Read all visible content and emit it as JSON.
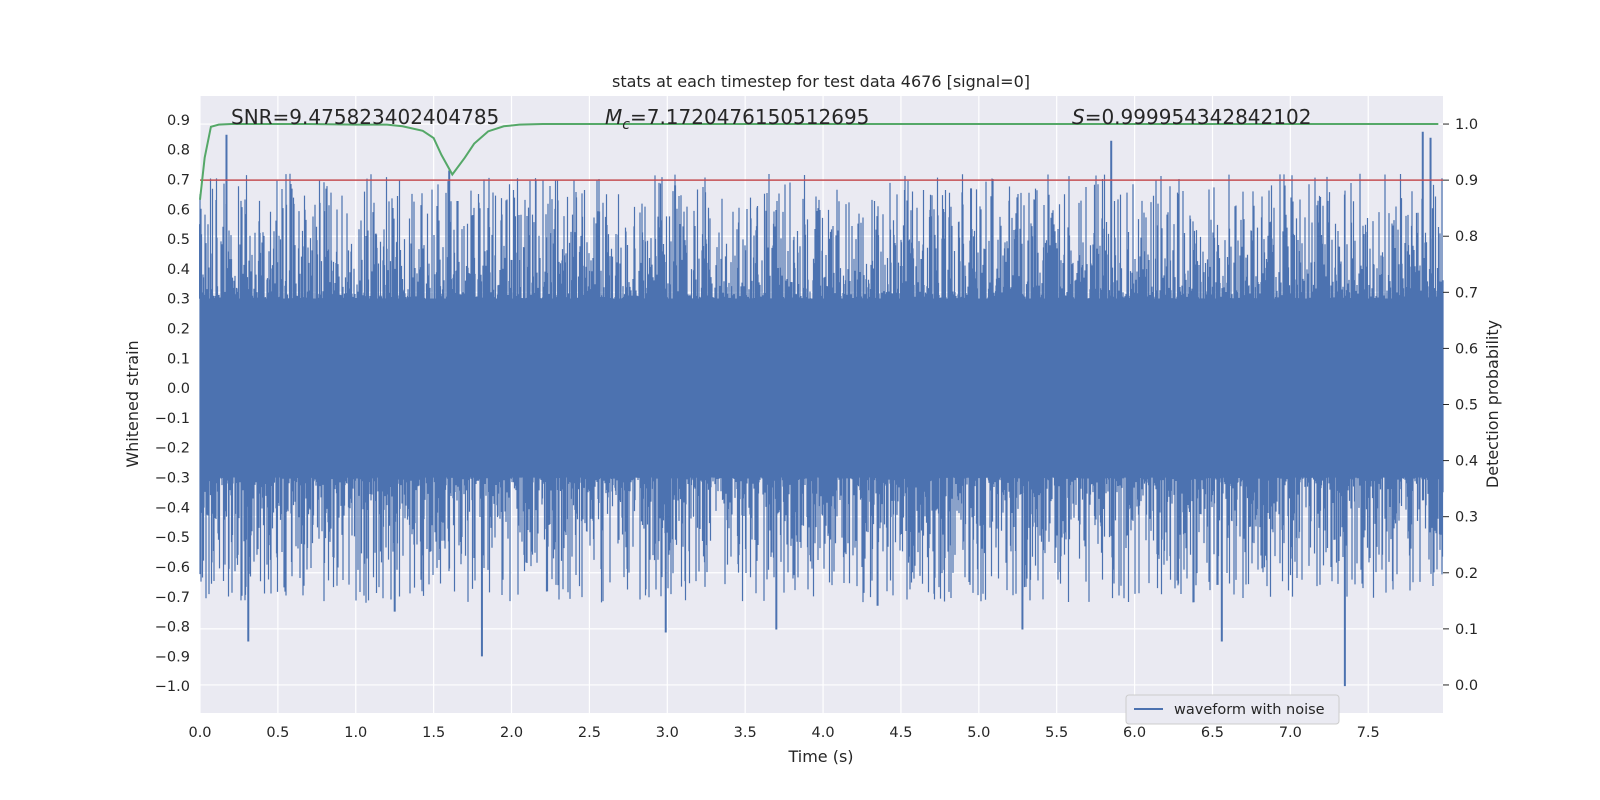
{
  "chart_data": {
    "type": "line",
    "title": "stats at each timestep for test data 4676 [signal=0]",
    "xlabel": "Time (s)",
    "ylabel": "Whitened strain",
    "y2label": "Detection probability",
    "xlim": [
      0.0,
      7.98
    ],
    "ylim": [
      -1.09,
      0.98
    ],
    "y2lim": [
      -0.05,
      1.05
    ],
    "x_ticks": [
      0.0,
      0.5,
      1.0,
      1.5,
      2.0,
      2.5,
      3.0,
      3.5,
      4.0,
      4.5,
      5.0,
      5.5,
      6.0,
      6.5,
      7.0,
      7.5
    ],
    "x_tick_labels": [
      "0.0",
      "0.5",
      "1.0",
      "1.5",
      "2.0",
      "2.5",
      "3.0",
      "3.5",
      "4.0",
      "4.5",
      "5.0",
      "5.5",
      "6.0",
      "6.5",
      "7.0",
      "7.5"
    ],
    "y_ticks": [
      0.9,
      0.8,
      0.7,
      0.6,
      0.5,
      0.4,
      0.3,
      0.2,
      0.1,
      0.0,
      -0.1,
      -0.2,
      -0.3,
      -0.4,
      -0.5,
      -0.6,
      -0.7,
      -0.8,
      -0.9,
      -1.0
    ],
    "y_tick_labels": [
      "0.9",
      "0.8",
      "0.7",
      "0.6",
      "0.5",
      "0.4",
      "0.3",
      "0.2",
      "0.1",
      "0.0",
      "−0.1",
      "−0.2",
      "−0.3",
      "−0.4",
      "−0.5",
      "−0.6",
      "−0.7",
      "−0.8",
      "−0.9",
      "−1.0"
    ],
    "y2_ticks": [
      1.0,
      0.9,
      0.8,
      0.7,
      0.6,
      0.5,
      0.4,
      0.3,
      0.2,
      0.1,
      0.0
    ],
    "y2_tick_labels": [
      "1.0",
      "0.9",
      "0.8",
      "0.7",
      "0.6",
      "0.5",
      "0.4",
      "0.3",
      "0.2",
      "0.1",
      "0.0"
    ],
    "grid": true,
    "legend": {
      "entries": [
        "waveform with noise"
      ],
      "position": "lower-right"
    },
    "annotations": {
      "snr": "SNR=9.475823402404785",
      "mc_symbol": "M",
      "mc_subscript": "c",
      "mc_value": "=7.1720476150512695",
      "s_symbol": "S",
      "s_value": "=0.999954342842102"
    },
    "series": [
      {
        "name": "waveform with noise",
        "axis": "left",
        "color": "#4c72b0",
        "kind": "dense noise (~0.3 core amplitude)",
        "x": [
          0.0,
          0.17,
          0.31,
          1.25,
          1.6,
          1.81,
          2.0,
          2.99,
          3.05,
          3.7,
          4.35,
          4.95,
          5.28,
          5.85,
          6.56,
          7.35,
          7.85,
          7.9
        ],
        "y": [
          0.55,
          0.85,
          -0.85,
          -0.75,
          0.73,
          -0.9,
          0.43,
          -0.82,
          0.68,
          -0.81,
          -0.73,
          0.67,
          -0.81,
          0.83,
          -0.85,
          -1.0,
          0.86,
          0.84
        ]
      },
      {
        "name": "detection probability",
        "axis": "right",
        "color": "#55a868",
        "x": [
          0.0,
          0.03,
          0.07,
          0.12,
          0.2,
          0.4,
          0.7,
          1.0,
          1.2,
          1.3,
          1.43,
          1.5,
          1.55,
          1.62,
          1.7,
          1.76,
          1.85,
          1.95,
          2.05,
          2.2,
          3.0,
          4.0,
          5.0,
          6.0,
          7.0,
          7.95
        ],
        "y": [
          0.865,
          0.94,
          0.995,
          0.999,
          1.0,
          1.0,
          1.0,
          0.999,
          0.999,
          0.996,
          0.988,
          0.975,
          0.945,
          0.91,
          0.94,
          0.965,
          0.987,
          0.996,
          0.999,
          1.0,
          1.0,
          1.0,
          1.0,
          1.0,
          1.0,
          1.0
        ]
      },
      {
        "name": "threshold",
        "axis": "right",
        "color": "#c44e52",
        "x": [
          0.0,
          7.98
        ],
        "y": [
          0.9,
          0.9
        ]
      }
    ]
  }
}
